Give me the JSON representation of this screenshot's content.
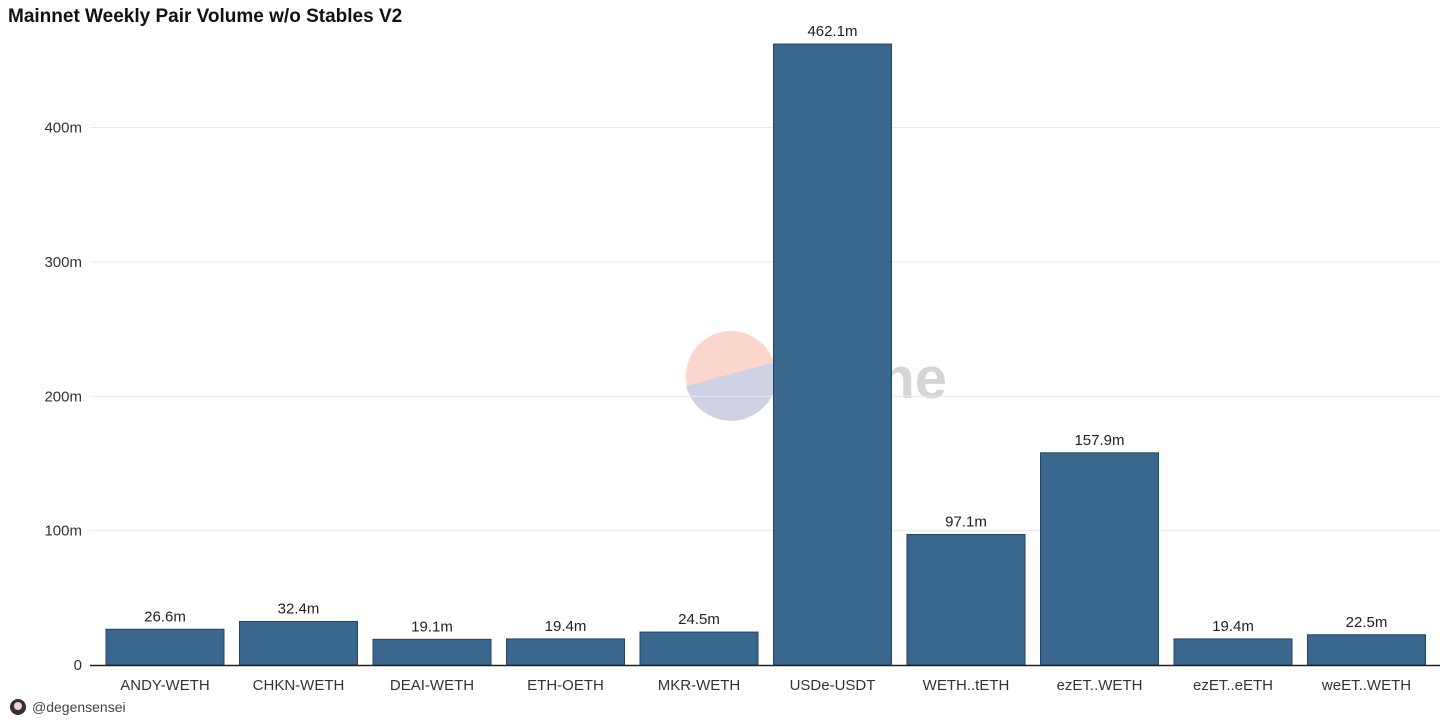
{
  "title": "Mainnet Weekly Pair Volume w/o Stables V2",
  "watermark": "Dune",
  "footer": {
    "author": "@degensensei"
  },
  "colors": {
    "bar": "#3a678e",
    "bar_stroke": "#23435f",
    "grid": "#e9e9e9",
    "axis": "#222222"
  },
  "chart_data": {
    "type": "bar",
    "title": "Mainnet Weekly Pair Volume w/o Stables V2",
    "xlabel": "",
    "ylabel": "",
    "categories": [
      "ANDY-WETH",
      "CHKN-WETH",
      "DEAI-WETH",
      "ETH-OETH",
      "MKR-WETH",
      "USDe-USDT",
      "WETH..tETH",
      "ezET..WETH",
      "ezET..eETH",
      "weET..WETH"
    ],
    "values": [
      26.6,
      32.4,
      19.1,
      19.4,
      24.5,
      462.1,
      97.1,
      157.9,
      19.4,
      22.5
    ],
    "data_labels": [
      "26.6m",
      "32.4m",
      "19.1m",
      "19.4m",
      "24.5m",
      "462.1m",
      "97.1m",
      "157.9m",
      "19.4m",
      "22.5m"
    ],
    "yticks": [
      0,
      100,
      200,
      300,
      400
    ],
    "ytick_labels": [
      "0",
      "100m",
      "200m",
      "300m",
      "400m"
    ],
    "ylim": [
      0,
      480
    ],
    "grid": true,
    "legend": "none"
  }
}
